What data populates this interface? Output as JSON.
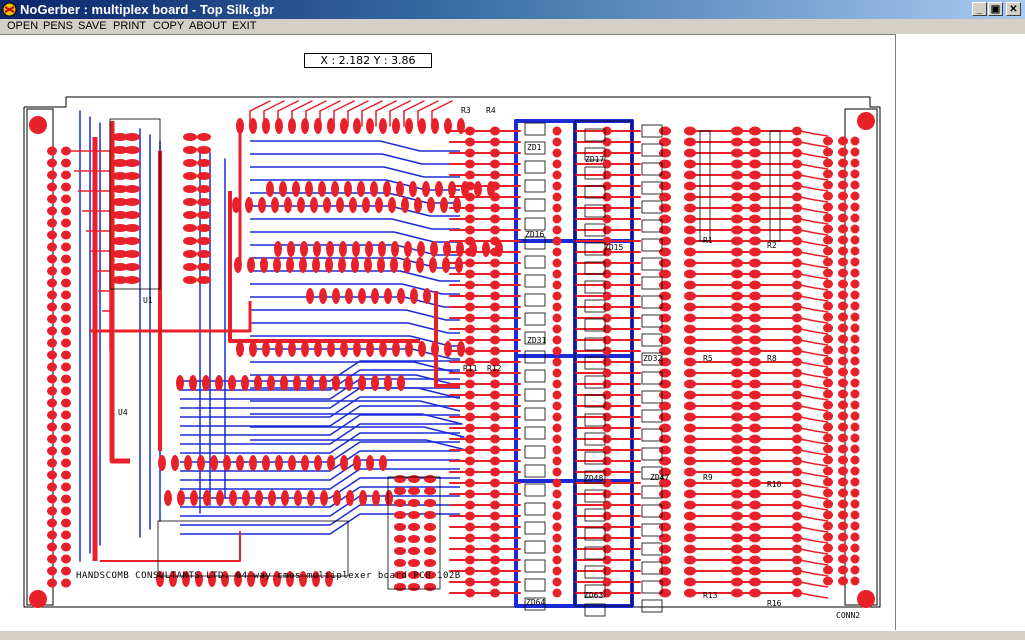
{
  "window": {
    "title": "NoGerber : multiplex board - Top Silk.gbr",
    "minimize": "_",
    "maximize": "▣",
    "close": "✕"
  },
  "menu": {
    "open": "OPEN",
    "pens": "PENS",
    "save": "SAVE",
    "print": "PRINT",
    "copy": "COPY",
    "about": "ABOUT",
    "exit": "EXIT"
  },
  "coordinates": "X : 2.182   Y : 3.86",
  "board": {
    "footer": "HANDSCOMB CONSULTANTS LTD. 64 way cmos multiplexer board   PCB 102B",
    "connector": "CONN2",
    "labels": {
      "r3": "R3",
      "r4": "R4",
      "r11": "R11",
      "r12": "R12",
      "r1": "R1",
      "r2": "R2",
      "r5": "R5",
      "r8": "R8",
      "r9": "R9",
      "r10": "R10",
      "r13": "R13",
      "r16": "R16",
      "zd16": "ZD16",
      "zd15": "ZD15",
      "zd32": "ZD32",
      "zd47": "ZD47",
      "zd48": "ZD48",
      "zd63": "ZD63",
      "zd64": "ZD64",
      "zd1": "ZD1",
      "zd17": "ZD17",
      "zd31": "ZD31",
      "u1": "U1",
      "u4": "U4"
    }
  },
  "colors": {
    "titlebar_start": "#0a246a",
    "titlebar_end": "#a6caf0",
    "top_copper": "#e8202a",
    "bottom_copper": "#1a2bd6",
    "silk": "#000000",
    "background": "#ffffff"
  }
}
